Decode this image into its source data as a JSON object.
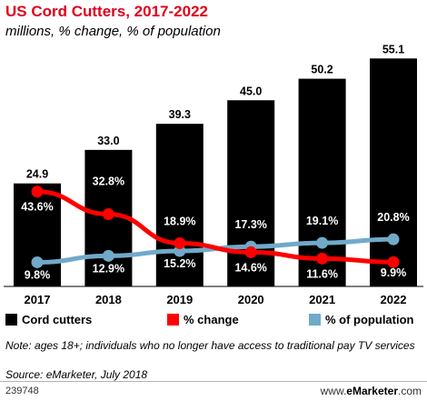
{
  "title": "US Cord Cutters, 2017-2022",
  "subtitle": "millions, % change, % of population",
  "chart_data": {
    "type": "bar",
    "categories": [
      "2017",
      "2018",
      "2019",
      "2020",
      "2021",
      "2022"
    ],
    "series": [
      {
        "name": "Cord cutters",
        "type": "bar",
        "values": [
          24.9,
          33.0,
          39.3,
          45.0,
          50.2,
          55.1
        ],
        "labels": [
          "24.9",
          "33.0",
          "39.3",
          "45.0",
          "50.2",
          "55.1"
        ],
        "color": "#000000"
      },
      {
        "name": "% change",
        "type": "line",
        "values": [
          43.6,
          32.8,
          18.9,
          14.6,
          11.6,
          9.9
        ],
        "labels": [
          "43.6%",
          "32.8%",
          "18.9%",
          "14.6%",
          "11.6%",
          "9.9%"
        ],
        "color": "#ff0000"
      },
      {
        "name": "% of population",
        "type": "line",
        "values": [
          9.8,
          12.9,
          15.2,
          17.3,
          19.1,
          20.8
        ],
        "labels": [
          "9.8%",
          "12.9%",
          "15.2%",
          "17.3%",
          "19.1%",
          "20.8%"
        ],
        "color": "#71a9c9"
      }
    ],
    "grid": false,
    "legend_position": "bottom"
  },
  "legend": {
    "cord_cutters": "Cord cutters",
    "pct_change": "% change",
    "pct_population": "% of population"
  },
  "note": "Note: ages 18+; individuals who no longer have access to traditional pay TV services",
  "source": "Source: eMarketer, July 2018",
  "footer_id": "239748",
  "brand_prefix": "www.",
  "brand_name": "eMarketer",
  "brand_suffix": ".com"
}
